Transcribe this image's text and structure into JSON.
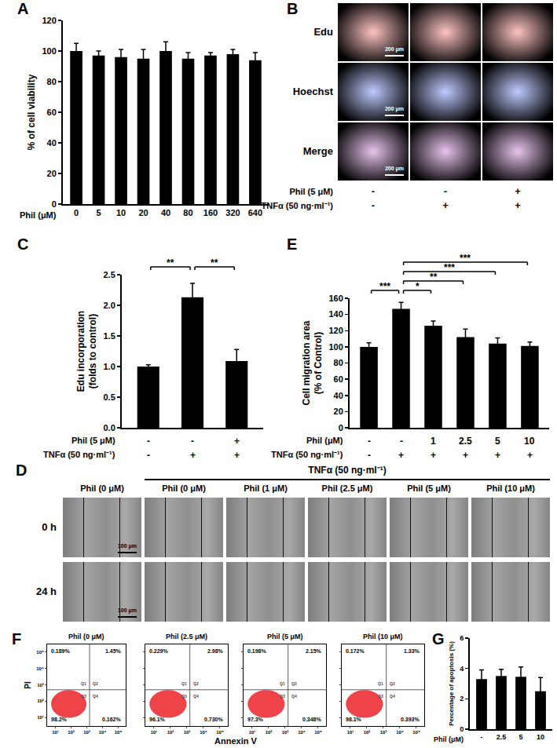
{
  "chart_data": [
    {
      "panel": "A",
      "type": "bar",
      "categories": [
        "0",
        "5",
        "10",
        "20",
        "40",
        "80",
        "160",
        "320",
        "640"
      ],
      "values": [
        100,
        97,
        96,
        95,
        100,
        95,
        97,
        98,
        94
      ],
      "error": [
        5,
        3,
        5,
        6,
        6,
        4,
        2,
        3,
        5
      ],
      "color": "#000000",
      "xlabel": "Phil (μM)",
      "ylabel": [
        "% of cell viability"
      ],
      "ylim": [
        0,
        120
      ],
      "yticks": [
        0,
        20,
        40,
        60,
        80,
        100,
        120
      ],
      "grid": false
    },
    {
      "panel": "B",
      "type": "image",
      "rows": [
        "Edu",
        "Hoechst",
        "Merge"
      ],
      "scale_bar": "200 μm",
      "treatments": [
        {
          "label": "Phil (5 μM)",
          "values": [
            "-",
            "-",
            "+"
          ]
        },
        {
          "label": "TNFα (50 ng·ml⁻¹)",
          "values": [
            "-",
            "+",
            "+"
          ]
        }
      ]
    },
    {
      "panel": "C",
      "type": "bar",
      "categories": [
        null,
        null,
        null
      ],
      "values": [
        1.0,
        2.13,
        1.09
      ],
      "error": [
        0.03,
        0.23,
        0.19
      ],
      "color": "#000000",
      "ylabel": [
        "Edu incorporation",
        "(folds to control)"
      ],
      "ylim": [
        0,
        2.5
      ],
      "yticks": [
        {
          "value": 0,
          "label": "0.0"
        },
        0.5,
        {
          "value": 1,
          "label": "1.0"
        },
        1.5,
        {
          "value": 2,
          "label": "2.0"
        },
        2.5
      ],
      "treatments": [
        {
          "label": "Phil (5 μM)",
          "values": [
            "-",
            "-",
            "+"
          ]
        },
        {
          "label": "TNFα (50 ng·ml⁻¹)",
          "values": [
            "-",
            "+",
            "+"
          ]
        }
      ],
      "brackets": [
        {
          "from": 0,
          "to": 1,
          "label": "**"
        },
        {
          "from": 1,
          "to": 2,
          "label": "**"
        }
      ],
      "tick_labels": "y",
      "grid": false
    },
    {
      "panel": "D",
      "type": "image",
      "columns": [
        "Phil (0 μM)",
        "Phil (0 μM)",
        "Phil (1 μM)",
        "Phil (2.5 μM)",
        "Phil (5 μM)",
        "Phil (10 μM)"
      ],
      "group": {
        "label": "TNFα (50 ng·ml⁻¹)",
        "from": 1,
        "to": 5
      },
      "rows": [
        "0 h",
        "24 h"
      ],
      "scale_bar": "100 μm"
    },
    {
      "panel": "E",
      "type": "bar",
      "categories": [
        null,
        null,
        null,
        null,
        null,
        null
      ],
      "values": [
        100,
        147,
        126,
        112,
        104,
        101
      ],
      "error": [
        5,
        8,
        6,
        10,
        7,
        5
      ],
      "color": "#000000",
      "ylabel": [
        "Cell migration area",
        "(% of Control)"
      ],
      "ylim": [
        0,
        160
      ],
      "yticks": [
        0,
        20,
        40,
        60,
        80,
        100,
        120,
        140,
        160
      ],
      "treatments": [
        {
          "label": "Phil (μM)",
          "values": [
            "-",
            "-",
            "1",
            "2.5",
            "5",
            "10"
          ]
        },
        {
          "label": "TNFα (50 ng·ml⁻¹)",
          "values": [
            "-",
            "+",
            "+",
            "+",
            "+",
            "+"
          ]
        }
      ],
      "brackets": [
        {
          "from": 1,
          "to": 2,
          "label": "*"
        },
        {
          "from": 1,
          "to": 3,
          "label": "**"
        },
        {
          "from": 1,
          "to": 4,
          "label": "***"
        },
        {
          "from": 1,
          "to": 5,
          "label": "***"
        },
        {
          "from": 0,
          "to": 1,
          "label": "***"
        }
      ],
      "tick_labels": "y",
      "grid": false
    },
    {
      "panel": "F",
      "type": "flow",
      "xlabel": "Annexin V",
      "ylabel": "PI",
      "log": true,
      "xlim": [
        3,
        300000
      ],
      "ylim": [
        3,
        300000
      ],
      "xticks": [
        {
          "value": 10,
          "label": "10¹"
        },
        {
          "value": 100,
          "label": "10²"
        },
        {
          "value": 1000,
          "label": "10³"
        },
        {
          "value": 10000,
          "label": "10⁴"
        },
        {
          "value": 100000,
          "label": "10⁵"
        }
      ],
      "yticks": [
        {
          "value": 10,
          "label": "10¹"
        },
        {
          "value": 100,
          "label": "10²"
        },
        {
          "value": 1000,
          "label": "10³"
        },
        {
          "value": 10000,
          "label": "10⁴"
        },
        {
          "value": 100000,
          "label": "10⁵"
        }
      ],
      "gate": {
        "x": 1500,
        "y": 500
      },
      "color": "#e8141b",
      "quadrant_names": [
        "Q1",
        "Q2",
        "Q3",
        "Q4"
      ],
      "plots": [
        {
          "title": "Phil (0 μM)",
          "values": [
            0.189,
            1.45,
            98.2,
            0.162
          ],
          "value_labels": [
            "0.189%",
            "1.45%",
            "98.2%",
            "0.162%"
          ]
        },
        {
          "title": "Phil (2.5 μM)",
          "values": [
            0.229,
            2.98,
            96.1,
            0.73
          ],
          "value_labels": [
            "0.229%",
            "2.98%",
            "96.1%",
            "0.730%"
          ]
        },
        {
          "title": "Phil (5 μM)",
          "values": [
            0.198,
            2.15,
            97.3,
            0.348
          ],
          "value_labels": [
            "0.198%",
            "2.15%",
            "97.3%",
            "0.348%"
          ]
        },
        {
          "title": "Phil (10 μM)",
          "values": [
            0.172,
            1.33,
            98.1,
            0.393
          ],
          "value_labels": [
            "0.172%",
            "1.33%",
            "98.1%",
            "0.393%"
          ]
        }
      ]
    },
    {
      "panel": "G",
      "type": "bar",
      "categories": [
        "-",
        "2.5",
        "5",
        "10"
      ],
      "values": [
        3.3,
        3.5,
        3.45,
        2.5
      ],
      "error": [
        0.6,
        0.45,
        0.65,
        0.9
      ],
      "color": "#000000",
      "xlabel": "Phil (μM)",
      "ylabel": [
        "Percentage of apoptosis (%)"
      ],
      "ylim": [
        0,
        6
      ],
      "yticks": [
        0,
        2,
        4,
        6
      ],
      "grid": false
    }
  ]
}
